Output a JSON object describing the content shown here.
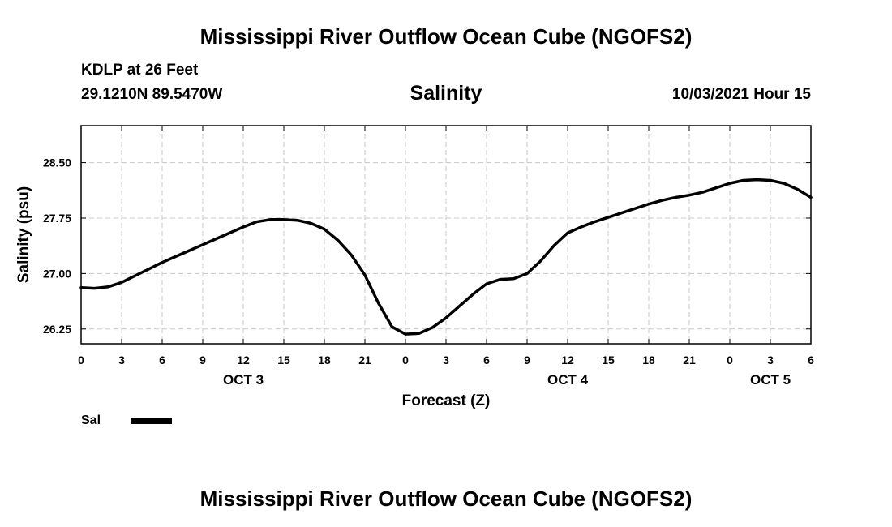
{
  "header": {
    "title": "Mississippi River Outflow Ocean Cube (NGOFS2)",
    "station": "KDLP at 26 Feet",
    "coordinates": "29.1210N  89.5470W",
    "variable_title": "Salinity",
    "datetime": "10/03/2021 Hour 15"
  },
  "footer": {
    "title": "Mississippi River Outflow Ocean Cube (NGOFS2)"
  },
  "legend": {
    "label": "Sal",
    "color": "#000000"
  },
  "chart_data": {
    "type": "line",
    "title": "Salinity",
    "xlabel": "Forecast (Z)",
    "ylabel": "Salinity (psu)",
    "xlim": [
      0,
      54
    ],
    "ylim": [
      26.05,
      29.0
    ],
    "x_ticks": [
      0,
      3,
      6,
      9,
      12,
      15,
      18,
      21,
      24,
      27,
      30,
      33,
      36,
      39,
      42,
      45,
      48,
      51,
      54
    ],
    "x_tick_labels": [
      "0",
      "3",
      "6",
      "9",
      "12",
      "15",
      "18",
      "21",
      "0",
      "3",
      "6",
      "9",
      "12",
      "15",
      "18",
      "21",
      "0",
      "3",
      "6"
    ],
    "day_labels": [
      {
        "x": 12,
        "label": "OCT 3"
      },
      {
        "x": 36,
        "label": "OCT 4"
      },
      {
        "x": 51,
        "label": "OCT 5"
      }
    ],
    "y_ticks": [
      26.25,
      27.0,
      27.75,
      28.5
    ],
    "y_tick_labels": [
      "26.25",
      "27.00",
      "27.75",
      "28.50"
    ],
    "grid": true,
    "legend_position": "bottom-left",
    "series": [
      {
        "name": "Sal",
        "color": "#000000",
        "x": [
          0,
          1,
          2,
          3,
          4,
          5,
          6,
          7,
          8,
          9,
          10,
          11,
          12,
          13,
          14,
          15,
          16,
          17,
          18,
          19,
          20,
          21,
          22,
          23,
          24,
          25,
          26,
          27,
          28,
          29,
          30,
          31,
          32,
          33,
          34,
          35,
          36,
          37,
          38,
          39,
          40,
          41,
          42,
          43,
          44,
          45,
          46,
          47,
          48,
          49,
          50,
          51,
          52,
          53,
          54
        ],
        "y": [
          26.81,
          26.8,
          26.82,
          26.88,
          26.97,
          27.06,
          27.15,
          27.23,
          27.31,
          27.39,
          27.47,
          27.55,
          27.63,
          27.7,
          27.73,
          27.73,
          27.72,
          27.68,
          27.6,
          27.45,
          27.25,
          26.98,
          26.6,
          26.28,
          26.18,
          26.19,
          26.27,
          26.4,
          26.56,
          26.72,
          26.86,
          26.92,
          26.93,
          27.0,
          27.17,
          27.38,
          27.55,
          27.63,
          27.7,
          27.76,
          27.82,
          27.88,
          27.94,
          27.99,
          28.03,
          28.06,
          28.1,
          28.16,
          28.22,
          28.26,
          28.27,
          28.26,
          28.22,
          28.14,
          28.03
        ]
      }
    ]
  }
}
